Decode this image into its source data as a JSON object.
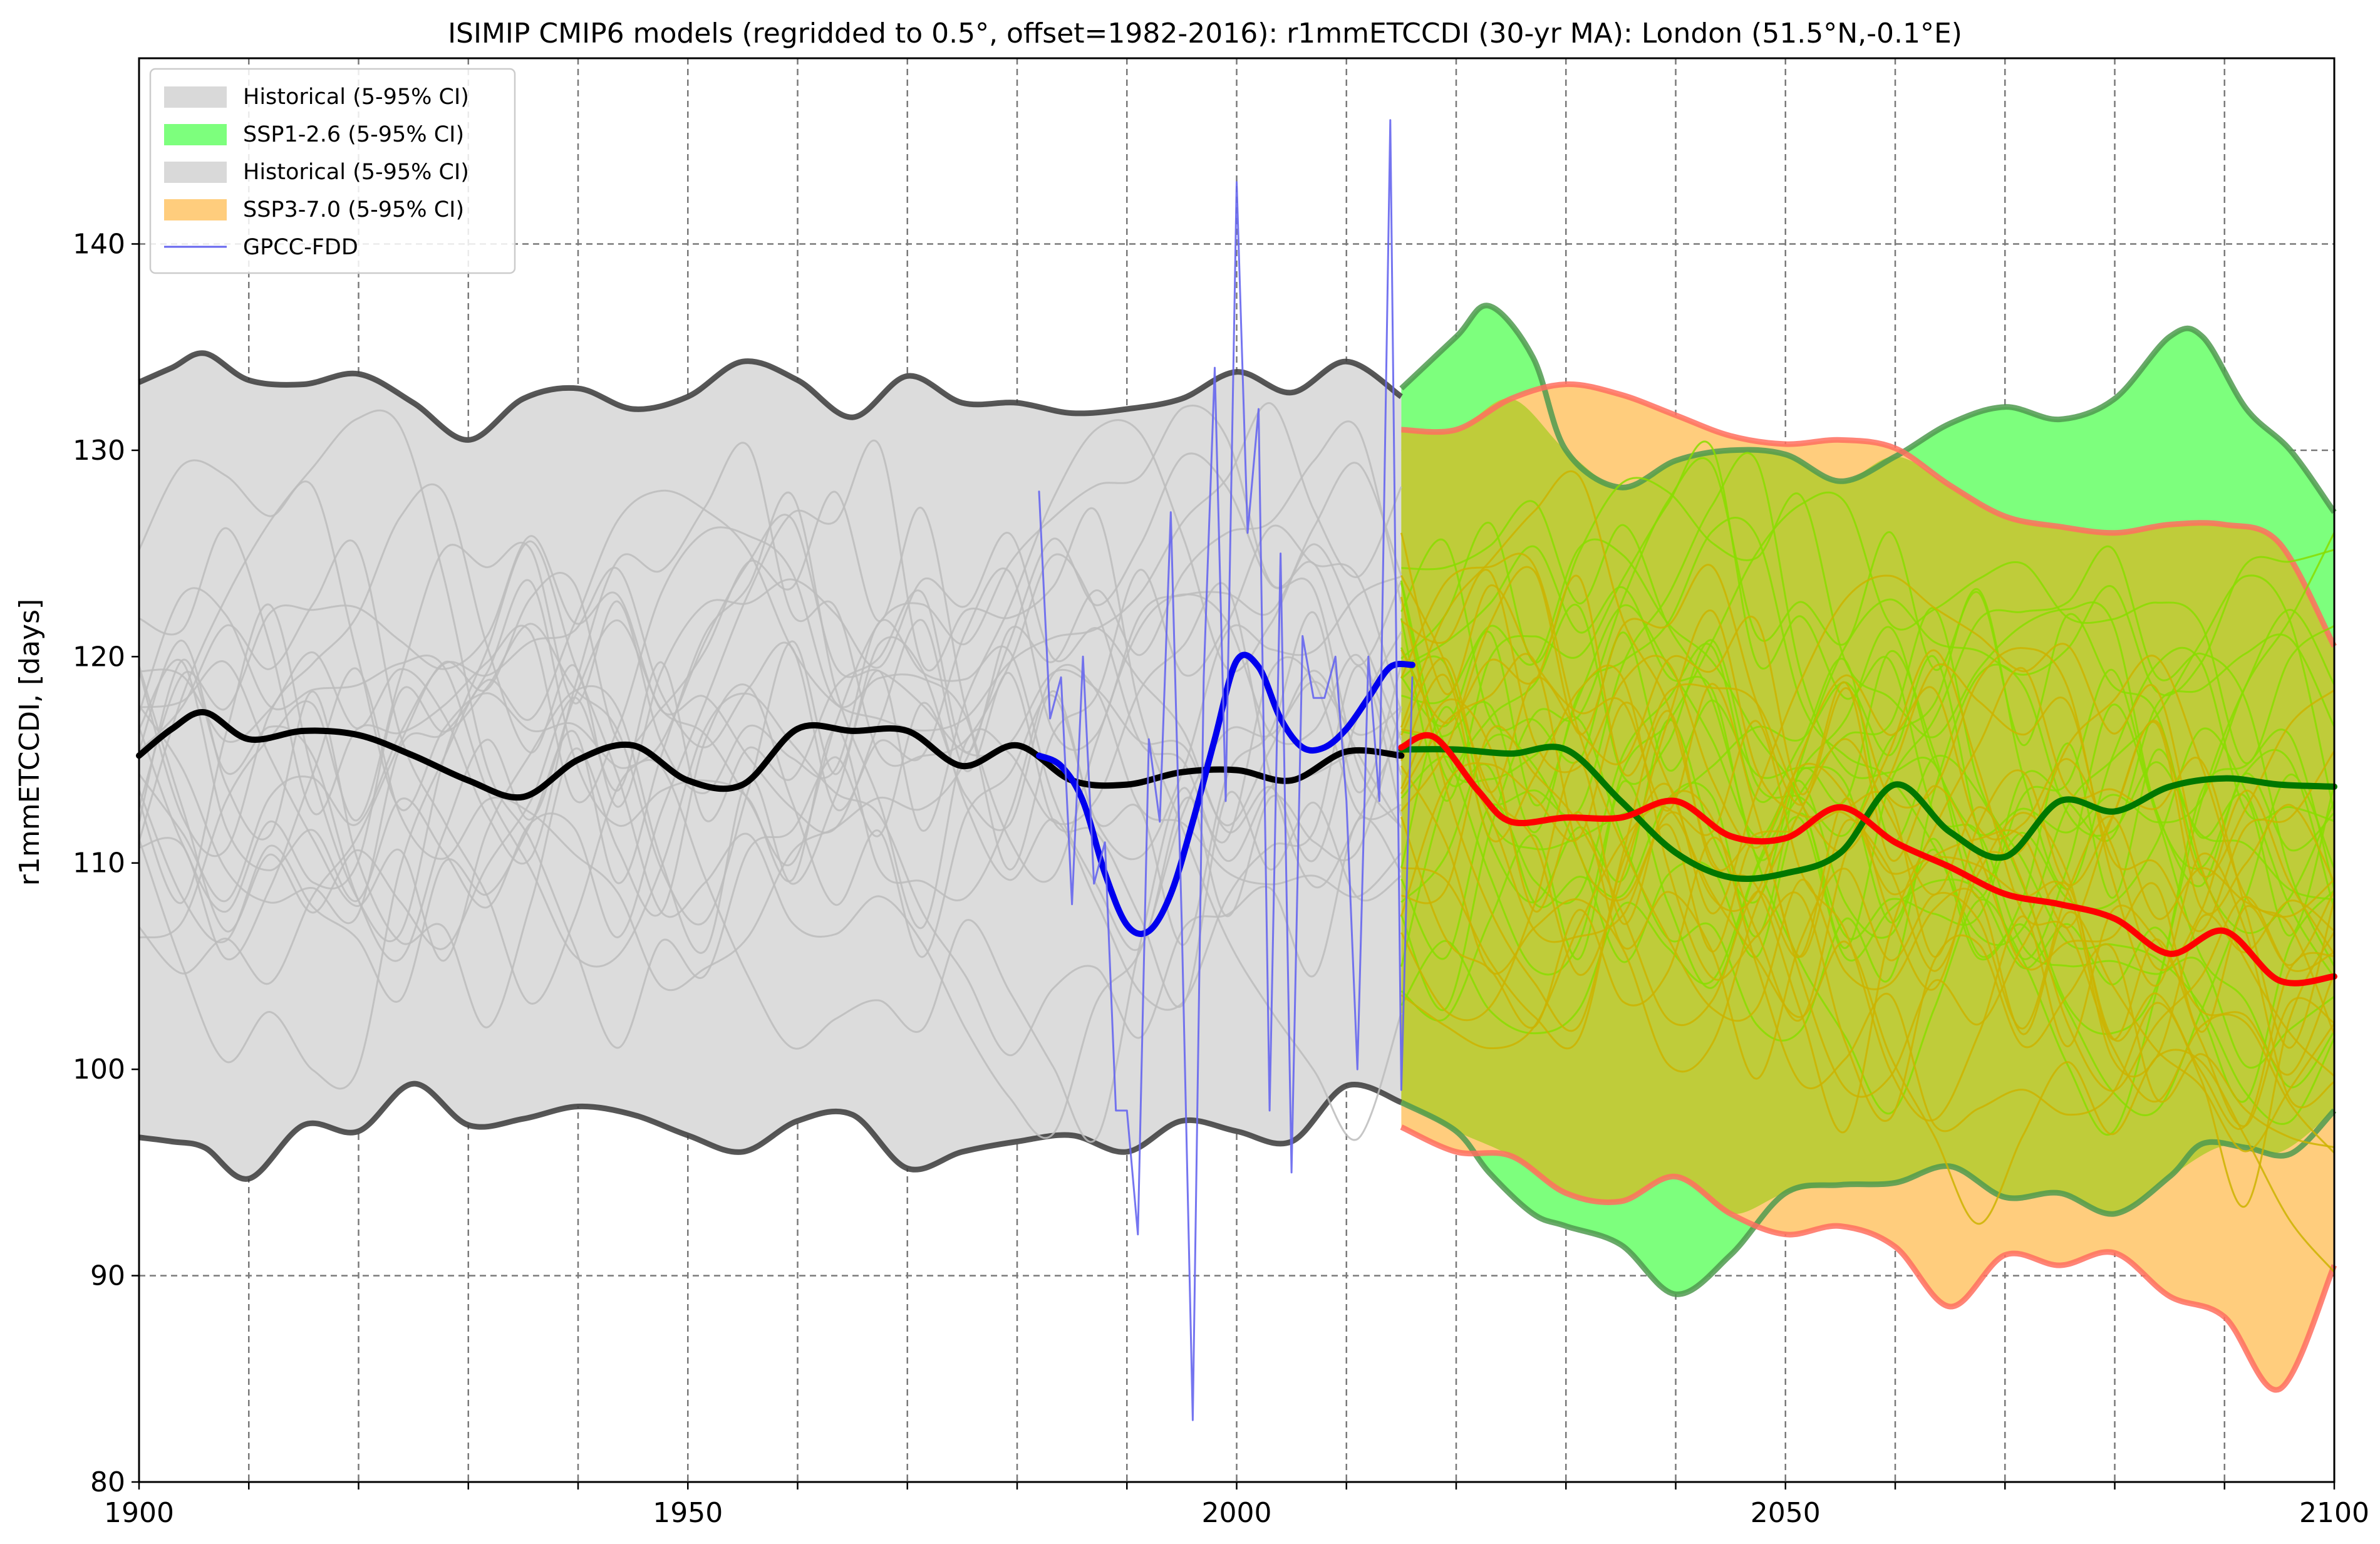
{
  "chart_data": {
    "type": "line",
    "title": "ISIMIP CMIP6 models (regridded to 0.5°, offset=1982-2016): r1mmETCCDI (30-yr MA): London (51.5°N,-0.1°E)",
    "xlabel": "",
    "ylabel": "r1mmETCCDI, [days]",
    "xlim": [
      1900,
      2100
    ],
    "ylim": [
      80,
      149
    ],
    "x_ticks": [
      "1900",
      "1950",
      "2000",
      "2050",
      "2100"
    ],
    "y_ticks": [
      "80",
      "90",
      "100",
      "110",
      "120",
      "130",
      "140"
    ],
    "grid": true,
    "legend_position": "upper-left",
    "legend": [
      {
        "label": "Historical (5-95% CI)",
        "color": "#d9d9d9",
        "kind": "patch"
      },
      {
        "label": "SSP1-2.6 (5-95% CI)",
        "color": "#7dff7d",
        "kind": "patch"
      },
      {
        "label": "Historical (5-95% CI)",
        "color": "#d9d9d9",
        "kind": "patch"
      },
      {
        "label": "SSP3-7.0 (5-95% CI)",
        "color": "#ffcd7d",
        "kind": "patch"
      },
      {
        "label": "GPCC-FDD",
        "color": "#6666ee",
        "kind": "line"
      }
    ],
    "bands": [
      {
        "name": "Historical (5-95% CI)",
        "color": "#dcdcdc",
        "edge_color": "#3a3a3a",
        "x": [
          1900,
          1903,
          1906,
          1910,
          1915,
          1920,
          1925,
          1930,
          1935,
          1940,
          1945,
          1950,
          1955,
          1960,
          1965,
          1970,
          1975,
          1980,
          1985,
          1990,
          1995,
          2000,
          2005,
          2010,
          2015
        ],
        "upper": [
          133.3,
          134.0,
          134.7,
          133.4,
          133.2,
          133.7,
          132.3,
          130.5,
          132.5,
          133.0,
          132.0,
          132.6,
          134.3,
          133.4,
          131.6,
          133.6,
          132.3,
          132.3,
          131.8,
          132.0,
          132.5,
          133.8,
          132.8,
          134.3,
          132.6
        ],
        "lower": [
          96.7,
          96.5,
          96.2,
          94.7,
          97.3,
          97.0,
          99.3,
          97.3,
          97.6,
          98.2,
          97.8,
          96.8,
          96.0,
          97.5,
          97.8,
          95.2,
          96.0,
          96.5,
          96.8,
          96.0,
          97.5,
          97.0,
          96.5,
          99.2,
          98.4
        ]
      },
      {
        "name": "SSP1-2.6 (5-95% CI)",
        "color": "#7dff7d",
        "edge_color": "#4f9a4f",
        "x": [
          2015,
          2020,
          2023,
          2027,
          2030,
          2035,
          2040,
          2045,
          2050,
          2055,
          2060,
          2065,
          2070,
          2075,
          2080,
          2085,
          2088,
          2092,
          2096,
          2100
        ],
        "upper": [
          133.0,
          135.5,
          137.0,
          134.5,
          130.0,
          128.2,
          129.5,
          130.0,
          129.8,
          128.5,
          129.7,
          131.3,
          132.1,
          131.5,
          132.5,
          135.5,
          135.5,
          132.0,
          130.0,
          127.0
        ],
        "lower": [
          98.4,
          97.0,
          95.0,
          93.0,
          92.4,
          91.5,
          89.1,
          91.0,
          94.0,
          94.4,
          94.5,
          95.3,
          93.8,
          94.0,
          93.0,
          94.8,
          96.4,
          96.2,
          95.9,
          98.0
        ]
      },
      {
        "name": "SSP3-7.0 (5-95% CI)",
        "color": "#ffcd7d",
        "edge_color": "#ff6f5f",
        "x": [
          2015,
          2020,
          2025,
          2030,
          2035,
          2040,
          2045,
          2050,
          2055,
          2060,
          2065,
          2070,
          2075,
          2080,
          2085,
          2090,
          2095,
          2100
        ],
        "upper": [
          131.0,
          131.0,
          132.5,
          133.2,
          132.7,
          131.7,
          130.7,
          130.3,
          130.5,
          130.1,
          128.3,
          126.8,
          126.3,
          126.0,
          126.4,
          126.4,
          125.5,
          120.5
        ],
        "lower": [
          97.2,
          96.0,
          95.8,
          94.0,
          93.6,
          94.8,
          93.0,
          92.0,
          92.4,
          91.4,
          88.5,
          91.0,
          90.5,
          91.1,
          89.0,
          88.0,
          84.5,
          90.5
        ]
      }
    ],
    "series": [
      {
        "name": "Historical median",
        "color": "#000000",
        "x": [
          1900,
          1903,
          1906,
          1910,
          1915,
          1920,
          1925,
          1930,
          1935,
          1940,
          1945,
          1950,
          1955,
          1960,
          1965,
          1970,
          1975,
          1980,
          1985,
          1990,
          1995,
          2000,
          2005,
          2010,
          2015
        ],
        "values": [
          115.2,
          116.5,
          117.3,
          116.0,
          116.4,
          116.2,
          115.2,
          114.0,
          113.2,
          115.0,
          115.7,
          114.0,
          113.8,
          116.5,
          116.4,
          116.4,
          114.7,
          115.7,
          114.0,
          113.8,
          114.4,
          114.5,
          114.0,
          115.4,
          115.2
        ]
      },
      {
        "name": "SSP1-2.6 median",
        "color": "#007700",
        "x": [
          2015,
          2020,
          2025,
          2030,
          2035,
          2040,
          2045,
          2050,
          2055,
          2060,
          2065,
          2070,
          2075,
          2080,
          2085,
          2090,
          2095,
          2100
        ],
        "values": [
          115.5,
          115.5,
          115.3,
          115.5,
          113.0,
          110.5,
          109.3,
          109.5,
          110.5,
          113.8,
          111.5,
          110.3,
          113.0,
          112.5,
          113.7,
          114.1,
          113.8,
          113.7
        ]
      },
      {
        "name": "SSP3-7.0 median",
        "color": "#ff0000",
        "x": [
          2015,
          2018,
          2022,
          2025,
          2030,
          2035,
          2040,
          2045,
          2050,
          2055,
          2060,
          2065,
          2070,
          2075,
          2080,
          2085,
          2090,
          2095,
          2100
        ],
        "values": [
          115.6,
          116.1,
          113.5,
          112.0,
          112.2,
          112.2,
          113.0,
          111.3,
          111.2,
          112.7,
          111.0,
          109.8,
          108.5,
          108.0,
          107.3,
          105.6,
          106.7,
          104.3,
          104.5
        ]
      },
      {
        "name": "GPCC-FDD 30-yr MA",
        "color": "#0000ee",
        "x": [
          1982,
          1984,
          1986,
          1988,
          1990,
          1992,
          1994,
          1996,
          1998,
          2000,
          2002,
          2004,
          2006,
          2008,
          2010,
          2012,
          2014,
          2016
        ],
        "values": [
          115.2,
          114.7,
          113.0,
          109.5,
          107.0,
          106.7,
          108.5,
          112.0,
          116.0,
          119.8,
          119.5,
          117.0,
          115.6,
          115.6,
          116.5,
          118.0,
          119.5,
          119.6
        ]
      },
      {
        "name": "GPCC-FDD",
        "color": "#6666ee",
        "x": [
          1982,
          1983,
          1984,
          1985,
          1986,
          1987,
          1988,
          1989,
          1990,
          1991,
          1992,
          1993,
          1994,
          1995,
          1996,
          1997,
          1998,
          1999,
          2000,
          2001,
          2002,
          2003,
          2004,
          2005,
          2006,
          2007,
          2008,
          2009,
          2010,
          2011,
          2012,
          2013,
          2014,
          2015,
          2016
        ],
        "values": [
          128,
          117,
          119,
          108,
          120,
          109,
          111,
          98,
          98,
          92,
          116,
          112,
          127,
          107,
          83,
          119,
          134,
          113,
          143,
          126,
          132,
          98,
          125,
          95,
          121,
          118,
          118,
          120,
          113,
          100,
          120,
          113,
          146,
          99,
          119
        ]
      }
    ]
  }
}
